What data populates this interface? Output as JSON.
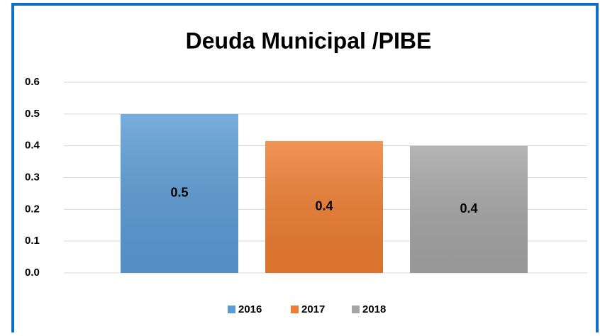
{
  "chart_data": {
    "type": "bar",
    "title": "Deuda Municipal /PIBE",
    "series": [
      {
        "name": "2016",
        "color": "#5b9bd5",
        "values": [
          0.5
        ],
        "value_labels": [
          "0.5"
        ]
      },
      {
        "name": "2017",
        "color": "#ed7d31",
        "values": [
          0.415
        ],
        "value_labels": [
          "0.4"
        ]
      },
      {
        "name": "2018",
        "color": "#a5a5a5",
        "values": [
          0.4
        ],
        "value_labels": [
          "0.4"
        ]
      }
    ],
    "ylim": [
      0,
      0.6
    ],
    "yticks": [
      {
        "value": 0,
        "label": "0.0"
      },
      0.1,
      0.2,
      0.3,
      0.4,
      0.5,
      0.6
    ],
    "grid": true,
    "legend": "bottom"
  }
}
